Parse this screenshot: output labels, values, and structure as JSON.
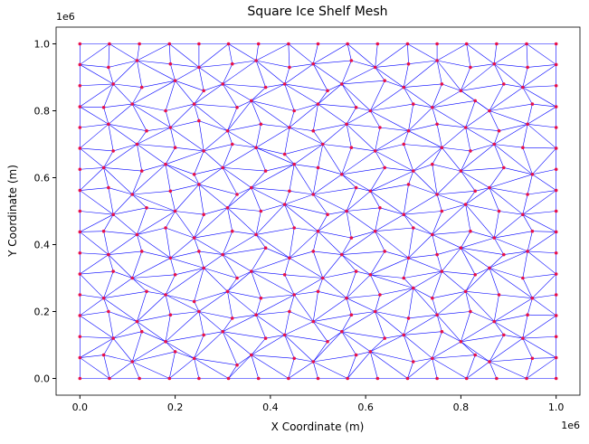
{
  "chart_data": {
    "type": "mesh",
    "title": "Square Ice Shelf Mesh",
    "x_label": "X Coordinate (m)",
    "y_label": "Y Coordinate (m)",
    "x_offset_label": "1e6",
    "y_offset_label": "1e6",
    "edge_color": "#0000ff",
    "node_color": "#e8104a",
    "xlim": [
      -0.05,
      1.05
    ],
    "ylim": [
      -0.05,
      1.05
    ],
    "xticks": [
      {
        "value": 0,
        "label": "0.0"
      },
      0.2,
      0.4,
      0.6,
      0.8,
      {
        "value": 1,
        "label": "1.0"
      }
    ],
    "yticks": [
      {
        "value": 0,
        "label": "0.0"
      },
      0.2,
      0.4,
      0.6,
      0.8,
      {
        "value": 1,
        "label": "1.0"
      }
    ],
    "nodes_x": [
      [
        0,
        0.062,
        0.125,
        0.188,
        0.25,
        0.312,
        0.375,
        0.438,
        0.5,
        0.562,
        0.625,
        0.688,
        0.75,
        0.812,
        0.875,
        0.938,
        1
      ],
      [
        0,
        0.05,
        0.11,
        0.2,
        0.24,
        0.33,
        0.36,
        0.45,
        0.49,
        0.58,
        0.61,
        0.7,
        0.74,
        0.83,
        0.86,
        0.95,
        1
      ],
      [
        0,
        0.07,
        0.13,
        0.18,
        0.26,
        0.3,
        0.39,
        0.43,
        0.52,
        0.55,
        0.64,
        0.68,
        0.76,
        0.8,
        0.89,
        0.93,
        1
      ],
      [
        0,
        0.06,
        0.12,
        0.19,
        0.25,
        0.32,
        0.37,
        0.44,
        0.49,
        0.57,
        0.62,
        0.69,
        0.75,
        0.82,
        0.87,
        0.94,
        1
      ],
      [
        0,
        0.05,
        0.14,
        0.18,
        0.24,
        0.31,
        0.38,
        0.45,
        0.5,
        0.56,
        0.63,
        0.7,
        0.74,
        0.81,
        0.88,
        0.95,
        1
      ],
      [
        0,
        0.07,
        0.11,
        0.2,
        0.26,
        0.33,
        0.36,
        0.43,
        0.51,
        0.58,
        0.61,
        0.68,
        0.76,
        0.83,
        0.86,
        0.93,
        1
      ],
      [
        0,
        0.06,
        0.13,
        0.19,
        0.25,
        0.3,
        0.39,
        0.44,
        0.49,
        0.55,
        0.64,
        0.69,
        0.75,
        0.8,
        0.89,
        0.94,
        1
      ],
      [
        0,
        0.05,
        0.12,
        0.18,
        0.24,
        0.32,
        0.37,
        0.45,
        0.5,
        0.57,
        0.62,
        0.7,
        0.74,
        0.82,
        0.87,
        0.95,
        1
      ],
      [
        0,
        0.07,
        0.14,
        0.2,
        0.26,
        0.31,
        0.38,
        0.43,
        0.52,
        0.56,
        0.63,
        0.68,
        0.76,
        0.81,
        0.88,
        0.93,
        1
      ],
      [
        0,
        0.06,
        0.11,
        0.19,
        0.25,
        0.33,
        0.36,
        0.44,
        0.49,
        0.58,
        0.61,
        0.69,
        0.75,
        0.83,
        0.86,
        0.94,
        1
      ],
      [
        0,
        0.05,
        0.13,
        0.18,
        0.24,
        0.3,
        0.39,
        0.45,
        0.5,
        0.55,
        0.64,
        0.7,
        0.74,
        0.8,
        0.89,
        0.95,
        1
      ],
      [
        0,
        0.07,
        0.12,
        0.2,
        0.26,
        0.32,
        0.37,
        0.43,
        0.51,
        0.57,
        0.62,
        0.68,
        0.76,
        0.82,
        0.87,
        0.93,
        1
      ],
      [
        0,
        0.06,
        0.14,
        0.19,
        0.25,
        0.31,
        0.38,
        0.44,
        0.49,
        0.56,
        0.63,
        0.69,
        0.75,
        0.81,
        0.88,
        0.94,
        1
      ],
      [
        0,
        0.05,
        0.11,
        0.18,
        0.24,
        0.33,
        0.36,
        0.45,
        0.5,
        0.58,
        0.61,
        0.7,
        0.74,
        0.83,
        0.86,
        0.95,
        1
      ],
      [
        0,
        0.07,
        0.13,
        0.2,
        0.26,
        0.3,
        0.39,
        0.43,
        0.52,
        0.55,
        0.64,
        0.68,
        0.76,
        0.8,
        0.89,
        0.93,
        1
      ],
      [
        0,
        0.06,
        0.12,
        0.19,
        0.25,
        0.32,
        0.37,
        0.44,
        0.49,
        0.57,
        0.62,
        0.69,
        0.75,
        0.82,
        0.87,
        0.94,
        1
      ],
      [
        0,
        0.062,
        0.125,
        0.188,
        0.25,
        0.312,
        0.375,
        0.438,
        0.5,
        0.562,
        0.625,
        0.688,
        0.75,
        0.812,
        0.875,
        0.938,
        1
      ]
    ],
    "nodes_y": [
      [
        0,
        0,
        0,
        0,
        0,
        0,
        0,
        0,
        0,
        0,
        0,
        0,
        0,
        0,
        0,
        0,
        0
      ],
      [
        0.062,
        0.07,
        0.05,
        0.08,
        0.06,
        0.04,
        0.07,
        0.06,
        0.05,
        0.07,
        0.08,
        0.05,
        0.06,
        0.07,
        0.05,
        0.06,
        0.062
      ],
      [
        0.125,
        0.12,
        0.14,
        0.11,
        0.13,
        0.14,
        0.12,
        0.13,
        0.11,
        0.14,
        0.12,
        0.13,
        0.14,
        0.11,
        0.13,
        0.12,
        0.125
      ],
      [
        0.188,
        0.2,
        0.17,
        0.19,
        0.2,
        0.18,
        0.19,
        0.2,
        0.17,
        0.19,
        0.2,
        0.18,
        0.19,
        0.2,
        0.17,
        0.19,
        0.188
      ],
      [
        0.25,
        0.24,
        0.26,
        0.25,
        0.23,
        0.26,
        0.24,
        0.25,
        0.26,
        0.24,
        0.25,
        0.27,
        0.24,
        0.26,
        0.25,
        0.24,
        0.25
      ],
      [
        0.312,
        0.32,
        0.3,
        0.31,
        0.33,
        0.3,
        0.32,
        0.31,
        0.3,
        0.32,
        0.31,
        0.3,
        0.32,
        0.31,
        0.33,
        0.3,
        0.312
      ],
      [
        0.375,
        0.37,
        0.38,
        0.36,
        0.38,
        0.37,
        0.39,
        0.36,
        0.38,
        0.37,
        0.38,
        0.36,
        0.37,
        0.39,
        0.37,
        0.38,
        0.375
      ],
      [
        0.438,
        0.44,
        0.43,
        0.45,
        0.42,
        0.44,
        0.43,
        0.45,
        0.44,
        0.42,
        0.44,
        0.45,
        0.43,
        0.44,
        0.42,
        0.44,
        0.438
      ],
      [
        0.5,
        0.49,
        0.51,
        0.5,
        0.49,
        0.51,
        0.5,
        0.52,
        0.49,
        0.5,
        0.51,
        0.49,
        0.5,
        0.52,
        0.5,
        0.49,
        0.5
      ],
      [
        0.562,
        0.57,
        0.55,
        0.56,
        0.58,
        0.55,
        0.57,
        0.56,
        0.55,
        0.57,
        0.56,
        0.58,
        0.55,
        0.56,
        0.57,
        0.55,
        0.562
      ],
      [
        0.625,
        0.63,
        0.62,
        0.64,
        0.61,
        0.63,
        0.62,
        0.64,
        0.63,
        0.61,
        0.63,
        0.62,
        0.64,
        0.62,
        0.63,
        0.61,
        0.625
      ],
      [
        0.688,
        0.68,
        0.7,
        0.69,
        0.68,
        0.7,
        0.69,
        0.67,
        0.7,
        0.69,
        0.68,
        0.7,
        0.69,
        0.68,
        0.7,
        0.69,
        0.688
      ],
      [
        0.75,
        0.76,
        0.74,
        0.75,
        0.77,
        0.74,
        0.76,
        0.75,
        0.74,
        0.76,
        0.75,
        0.74,
        0.76,
        0.75,
        0.74,
        0.76,
        0.75
      ],
      [
        0.812,
        0.81,
        0.82,
        0.8,
        0.82,
        0.81,
        0.83,
        0.8,
        0.82,
        0.81,
        0.8,
        0.82,
        0.81,
        0.83,
        0.8,
        0.82,
        0.812
      ],
      [
        0.875,
        0.88,
        0.87,
        0.89,
        0.86,
        0.88,
        0.87,
        0.88,
        0.86,
        0.88,
        0.89,
        0.87,
        0.88,
        0.86,
        0.88,
        0.87,
        0.875
      ],
      [
        0.938,
        0.93,
        0.95,
        0.94,
        0.93,
        0.94,
        0.95,
        0.93,
        0.94,
        0.95,
        0.93,
        0.94,
        0.95,
        0.93,
        0.94,
        0.93,
        0.938
      ],
      [
        1,
        1,
        1,
        1,
        1,
        1,
        1,
        1,
        1,
        1,
        1,
        1,
        1,
        1,
        1,
        1,
        1
      ]
    ]
  }
}
